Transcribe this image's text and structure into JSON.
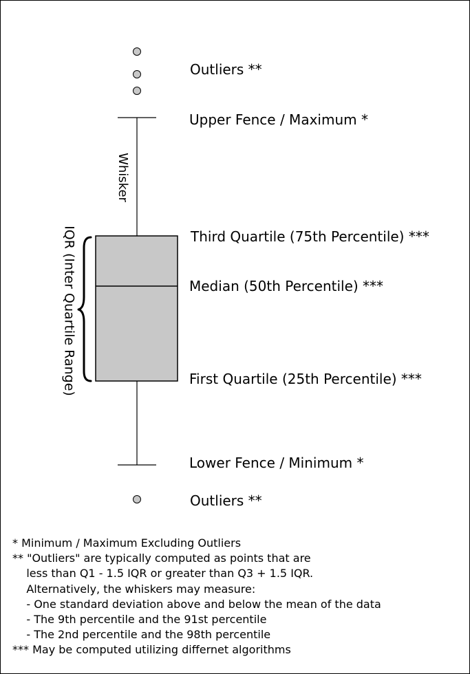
{
  "labels": {
    "outliers_top": "Outliers **",
    "upper_fence": "Upper Fence  / Maximum *",
    "third_quartile": "Third Quartile (75th Percentile) ***",
    "median": "Median (50th Percentile) ***",
    "first_quartile": "First Quartile (25th Percentile) ***",
    "lower_fence": "Lower Fence / Minimum *",
    "outliers_bottom": "Outliers **",
    "whisker": "Whisker",
    "iqr": "IQR (Inter Quartile Range)"
  },
  "notes": [
    "* Minimum / Maximum Excluding Outliers",
    "** \"Outliers\" are typically computed as points that are",
    "    less than Q1 - 1.5 IQR or greater than Q3 + 1.5 IQR.",
    "    Alternatively, the whiskers may measure:",
    "    - One standard deviation above and below the mean of the data",
    "    - The 9th percentile and the 91st percentile",
    "    - The 2nd percentile and the 98th percentile",
    "*** May be computed utilizing differnet algorithms"
  ],
  "colors": {
    "box_fill": "#c8c8c8",
    "outlier_fill": "#c8c8c8",
    "stroke": "#000000"
  }
}
